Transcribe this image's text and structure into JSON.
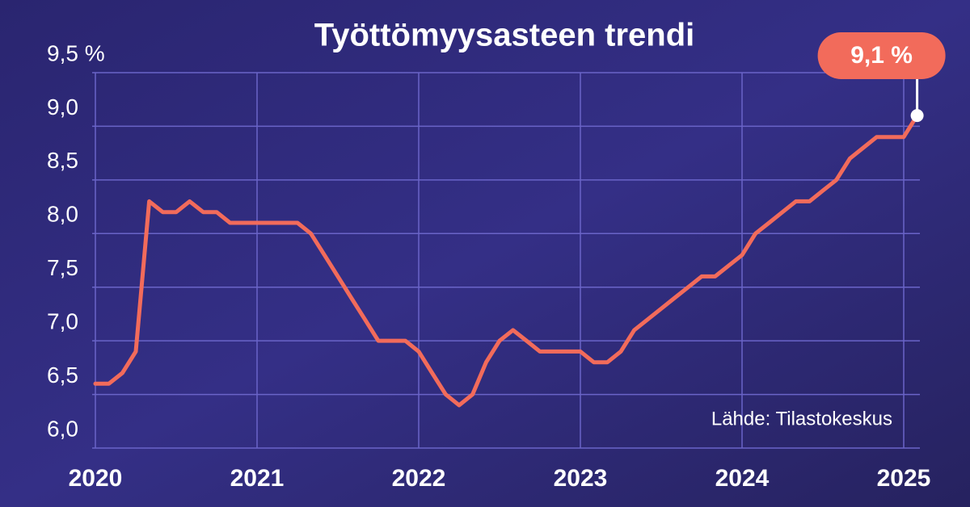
{
  "chart_data": {
    "type": "line",
    "title": "Työttömyysasteen trendi",
    "source": "Lähde: Tilastokeskus",
    "callout_label": "9,1 %",
    "x": [
      2020,
      2020.083,
      2020.167,
      2020.25,
      2020.333,
      2020.417,
      2020.5,
      2020.583,
      2020.667,
      2020.75,
      2020.833,
      2020.917,
      2021,
      2021.083,
      2021.167,
      2021.25,
      2021.333,
      2021.417,
      2021.5,
      2021.583,
      2021.667,
      2021.75,
      2021.833,
      2021.917,
      2022,
      2022.083,
      2022.167,
      2022.25,
      2022.333,
      2022.417,
      2022.5,
      2022.583,
      2022.667,
      2022.75,
      2022.833,
      2022.917,
      2023,
      2023.083,
      2023.167,
      2023.25,
      2023.333,
      2023.417,
      2023.5,
      2023.583,
      2023.667,
      2023.75,
      2023.833,
      2023.917,
      2024,
      2024.083,
      2024.167,
      2024.25,
      2024.333,
      2024.417,
      2024.5,
      2024.583,
      2024.667,
      2024.75,
      2024.833,
      2024.917,
      2025,
      2025.083
    ],
    "series": [
      {
        "color": "#f26b5b",
        "values": [
          6.6,
          6.6,
          6.7,
          6.9,
          8.3,
          8.2,
          8.2,
          8.3,
          8.2,
          8.2,
          8.1,
          8.1,
          8.1,
          8.1,
          8.1,
          8.1,
          8.0,
          7.8,
          7.6,
          7.4,
          7.2,
          7.0,
          7.0,
          7.0,
          6.9,
          6.7,
          6.5,
          6.4,
          6.5,
          6.8,
          7.0,
          7.1,
          7.0,
          6.9,
          6.9,
          6.9,
          6.9,
          6.8,
          6.8,
          6.9,
          7.1,
          7.2,
          7.3,
          7.4,
          7.5,
          7.6,
          7.6,
          7.7,
          7.8,
          8.0,
          8.1,
          8.2,
          8.3,
          8.3,
          8.4,
          8.5,
          8.7,
          8.8,
          8.9,
          8.9,
          8.9,
          9.1
        ]
      }
    ],
    "xlim": [
      2020,
      2025.1
    ],
    "xticks": [
      2020,
      2021,
      2022,
      2023,
      2024,
      2025
    ],
    "ylim": [
      6,
      9.5
    ],
    "yticks": [
      {
        "value": 6,
        "label": "6,0"
      },
      {
        "value": 6.5,
        "label": "6,5"
      },
      {
        "value": 7,
        "label": "7,0"
      },
      {
        "value": 7.5,
        "label": "7,5"
      },
      {
        "value": 8,
        "label": "8,0"
      },
      {
        "value": 8.5,
        "label": "8,5"
      },
      {
        "value": 9,
        "label": "9,0"
      },
      {
        "value": 9.5,
        "label": "9,5 %"
      }
    ],
    "grid": true
  }
}
